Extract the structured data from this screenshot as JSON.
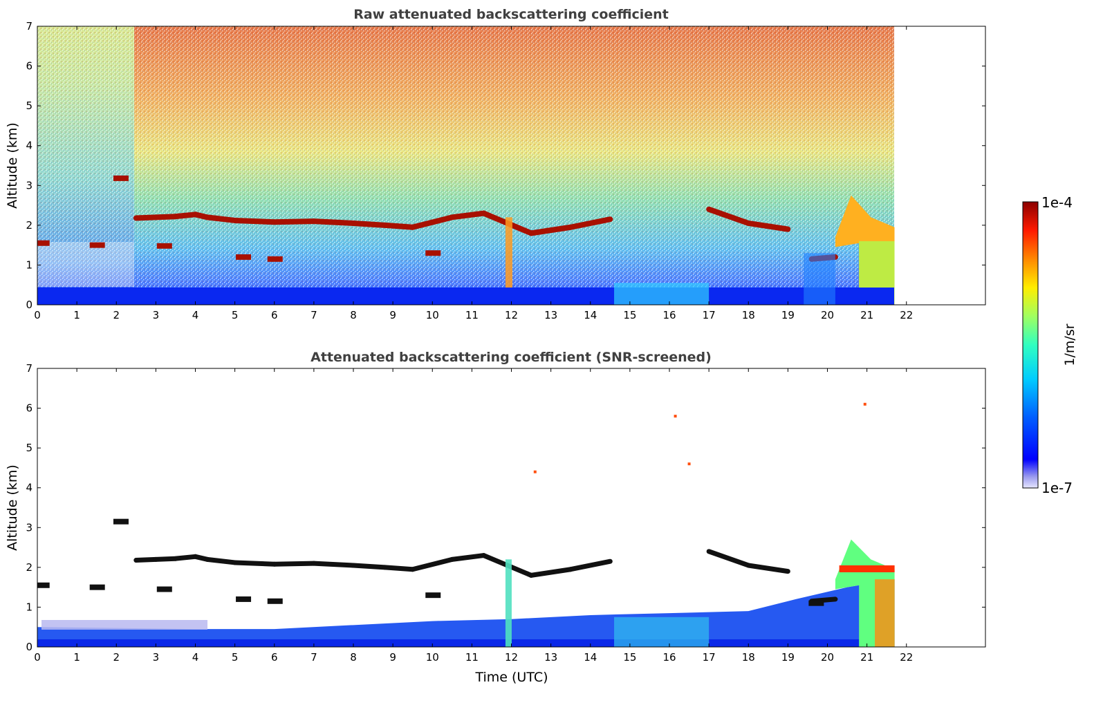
{
  "chart_data": [
    {
      "type": "heatmap",
      "title": "Raw attenuated backscattering coefficient",
      "xlabel": "",
      "ylabel": "Altitude (km)",
      "xlim": [
        0,
        24
      ],
      "ylim": [
        0,
        7
      ],
      "x_ticks": [
        "0",
        "1",
        "2",
        "3",
        "4",
        "5",
        "6",
        "7",
        "8",
        "9",
        "10",
        "11",
        "12",
        "13",
        "14",
        "15",
        "16",
        "17",
        "18",
        "19",
        "20",
        "21",
        "22"
      ],
      "y_ticks": [
        "0",
        "1",
        "2",
        "3",
        "4",
        "5",
        "6",
        "7"
      ],
      "data_extent_x": [
        0,
        21.7
      ],
      "features": {
        "surface_layer": {
          "x": [
            0,
            21.7
          ],
          "top_km": 0.4,
          "intensity": 0.12
        },
        "noise_upper": "increasing toward red with altitude",
        "cloud_layer": [
          {
            "x": 2.5,
            "alt": 2.18
          },
          {
            "x": 3.0,
            "alt": 2.2
          },
          {
            "x": 3.5,
            "alt": 2.22
          },
          {
            "x": 4.0,
            "alt": 2.27
          },
          {
            "x": 4.3,
            "alt": 2.2
          },
          {
            "x": 5.0,
            "alt": 2.12
          },
          {
            "x": 6.0,
            "alt": 2.08
          },
          {
            "x": 7.0,
            "alt": 2.1
          },
          {
            "x": 8.0,
            "alt": 2.05
          },
          {
            "x": 8.8,
            "alt": 2.0
          },
          {
            "x": 9.5,
            "alt": 1.95
          },
          {
            "x": 10.5,
            "alt": 2.2
          },
          {
            "x": 11.3,
            "alt": 2.3
          },
          {
            "x": 12.5,
            "alt": 1.8
          },
          {
            "x": 13.5,
            "alt": 1.95
          },
          {
            "x": 14.5,
            "alt": 2.15
          },
          {
            "x": 17.0,
            "alt": 2.4
          },
          {
            "x": 18.0,
            "alt": 2.05
          },
          {
            "x": 19.0,
            "alt": 1.9
          },
          {
            "x": 19.6,
            "alt": 1.15
          },
          {
            "x": 20.2,
            "alt": 1.2
          },
          {
            "x": 20.5,
            "alt": 2.2
          },
          {
            "x": 21.0,
            "alt": 1.75
          },
          {
            "x": 21.6,
            "alt": 1.7
          }
        ]
      }
    },
    {
      "type": "heatmap",
      "title": "Attenuated backscattering coefficient (SNR-screened)",
      "xlabel": "Time (UTC)",
      "ylabel": "Altitude (km)",
      "xlim": [
        0,
        24
      ],
      "ylim": [
        0,
        7
      ],
      "x_ticks": [
        "0",
        "1",
        "2",
        "3",
        "4",
        "5",
        "6",
        "7",
        "8",
        "9",
        "10",
        "11",
        "12",
        "13",
        "14",
        "15",
        "16",
        "17",
        "18",
        "19",
        "20",
        "21",
        "22"
      ],
      "y_ticks": [
        "0",
        "1",
        "2",
        "3",
        "4",
        "5",
        "6",
        "7"
      ],
      "data_extent_x": [
        0,
        21.7
      ],
      "features": {
        "boundary_layer_top": [
          {
            "x": 0,
            "alt": 0.5
          },
          {
            "x": 4,
            "alt": 0.45
          },
          {
            "x": 6,
            "alt": 0.45
          },
          {
            "x": 8,
            "alt": 0.55
          },
          {
            "x": 10,
            "alt": 0.65
          },
          {
            "x": 12,
            "alt": 0.7
          },
          {
            "x": 14,
            "alt": 0.8
          },
          {
            "x": 16,
            "alt": 0.85
          },
          {
            "x": 18,
            "alt": 0.9
          },
          {
            "x": 19.2,
            "alt": 1.2
          },
          {
            "x": 20.5,
            "alt": 1.5
          },
          {
            "x": 21.7,
            "alt": 1.7
          }
        ],
        "scattered_points": [
          {
            "x": 16.15,
            "alt": 5.8
          },
          {
            "x": 16.5,
            "alt": 4.6
          },
          {
            "x": 12.6,
            "alt": 4.4
          },
          {
            "x": 20.95,
            "alt": 6.1
          }
        ]
      }
    }
  ],
  "colorbar": {
    "label": "1/m/sr",
    "max_label": "1e-4",
    "min_label": "1e-7",
    "colormap": "jet"
  }
}
